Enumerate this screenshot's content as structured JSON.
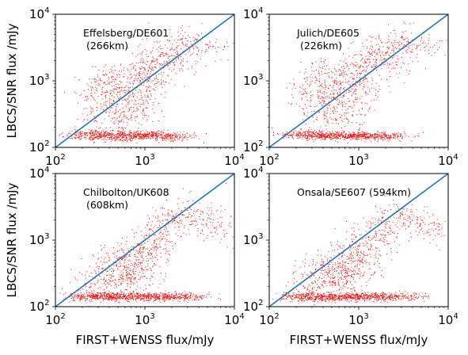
{
  "chart_data": [
    {
      "type": "scatter",
      "annotation": [
        "Effelsberg/DE601",
        " (266km)"
      ],
      "xlabel": "",
      "ylabel": "LBCS/SNR flux /mJy",
      "xscale": "log",
      "yscale": "log",
      "xlim": [
        100,
        10000
      ],
      "ylim": [
        100,
        10000
      ],
      "x_tick_labels": [
        {
          "base": "10",
          "exp": "2"
        },
        {
          "base": "10",
          "exp": "3"
        },
        {
          "base": "10",
          "exp": "4"
        }
      ],
      "y_tick_labels": [
        {
          "base": "10",
          "exp": "2"
        },
        {
          "base": "10",
          "exp": "3"
        },
        {
          "base": "10",
          "exp": "4"
        }
      ],
      "series": [
        {
          "marker_color": "#ff0000",
          "points": [
            [
              200,
              150
            ],
            [
              260,
              170
            ],
            [
              320,
              145
            ],
            [
              410,
              160
            ],
            [
              500,
              140
            ],
            [
              650,
              155
            ],
            [
              800,
              150
            ],
            [
              1000,
              145
            ],
            [
              1300,
              160
            ],
            [
              1700,
              150
            ],
            [
              2200,
              145
            ],
            [
              300,
              300
            ],
            [
              450,
              500
            ],
            [
              600,
              800
            ],
            [
              800,
              1200
            ],
            [
              1000,
              1500
            ],
            [
              1200,
              2000
            ],
            [
              1500,
              2500
            ],
            [
              2000,
              3000
            ],
            [
              700,
              400
            ],
            [
              900,
              700
            ],
            [
              1100,
              1000
            ],
            [
              400,
              900
            ],
            [
              350,
              1200
            ],
            [
              2500,
              1800
            ],
            [
              3000,
              4000
            ],
            [
              5000,
              3500
            ],
            [
              250,
              600
            ],
            [
              550,
              250
            ],
            [
              750,
              350
            ]
          ]
        },
        {
          "name": "",
          "type": "line",
          "line_color": "#1f77b4",
          "points": [
            [
              100,
              100
            ],
            [
              10000,
              10000
            ]
          ]
        }
      ]
    },
    {
      "type": "scatter",
      "annotation": [
        "Julich/DE605",
        " (226km)"
      ],
      "xlabel": "",
      "ylabel": "",
      "xscale": "log",
      "yscale": "log",
      "xlim": [
        100,
        10000
      ],
      "ylim": [
        100,
        10000
      ],
      "x_tick_labels": [
        {
          "base": "10",
          "exp": "2"
        },
        {
          "base": "10",
          "exp": "3"
        },
        {
          "base": "10",
          "exp": "4"
        }
      ],
      "y_tick_labels": [
        {
          "base": "10",
          "exp": "2"
        },
        {
          "base": "10",
          "exp": "3"
        },
        {
          "base": "10",
          "exp": "4"
        }
      ],
      "series": [
        {
          "marker_color": "#ff0000",
          "points": [
            [
              200,
              155
            ],
            [
              270,
              165
            ],
            [
              340,
              145
            ],
            [
              420,
              150
            ],
            [
              520,
              160
            ],
            [
              660,
              145
            ],
            [
              820,
              150
            ],
            [
              1050,
              155
            ],
            [
              1350,
              150
            ],
            [
              1800,
              145
            ],
            [
              2300,
              150
            ],
            [
              320,
              350
            ],
            [
              470,
              550
            ],
            [
              620,
              900
            ],
            [
              820,
              1300
            ],
            [
              1050,
              1700
            ],
            [
              1250,
              2100
            ],
            [
              1600,
              2600
            ],
            [
              2100,
              3200
            ],
            [
              720,
              450
            ],
            [
              920,
              750
            ],
            [
              1150,
              1050
            ],
            [
              420,
              950
            ],
            [
              360,
              1300
            ],
            [
              2600,
              1900
            ],
            [
              3200,
              4200
            ],
            [
              5200,
              3700
            ],
            [
              260,
              650
            ],
            [
              560,
              260
            ],
            [
              760,
              380
            ]
          ]
        },
        {
          "name": "",
          "type": "line",
          "line_color": "#1f77b4",
          "points": [
            [
              100,
              100
            ],
            [
              10000,
              10000
            ]
          ]
        }
      ]
    },
    {
      "type": "scatter",
      "annotation": [
        "Chilbolton/UK608",
        " (608km)"
      ],
      "xlabel": "FIRST+WENSS flux/mJy",
      "ylabel": "LBCS/SNR flux /mJy",
      "xscale": "log",
      "yscale": "log",
      "xlim": [
        100,
        10000
      ],
      "ylim": [
        100,
        10000
      ],
      "x_tick_labels": [
        {
          "base": "10",
          "exp": "2"
        },
        {
          "base": "10",
          "exp": "3"
        },
        {
          "base": "10",
          "exp": "4"
        }
      ],
      "y_tick_labels": [
        {
          "base": "10",
          "exp": "2"
        },
        {
          "base": "10",
          "exp": "3"
        },
        {
          "base": "10",
          "exp": "4"
        }
      ],
      "series": [
        {
          "marker_color": "#ff0000",
          "points": [
            [
              200,
              140
            ],
            [
              260,
              145
            ],
            [
              330,
              140
            ],
            [
              410,
              150
            ],
            [
              510,
              140
            ],
            [
              650,
              145
            ],
            [
              820,
              140
            ],
            [
              1050,
              145
            ],
            [
              1350,
              140
            ],
            [
              1800,
              145
            ],
            [
              2400,
              140
            ],
            [
              3200,
              145
            ],
            [
              300,
              250
            ],
            [
              450,
              350
            ],
            [
              600,
              500
            ],
            [
              800,
              700
            ],
            [
              1000,
              900
            ],
            [
              1300,
              1200
            ],
            [
              1700,
              1600
            ],
            [
              2200,
              2200
            ],
            [
              700,
              300
            ],
            [
              900,
              450
            ],
            [
              1100,
              600
            ],
            [
              400,
              500
            ],
            [
              3000,
              2800
            ],
            [
              4500,
              2000
            ],
            [
              250,
              200
            ],
            [
              550,
              220
            ],
            [
              750,
              260
            ],
            [
              6000,
              1500
            ]
          ]
        },
        {
          "name": "",
          "type": "line",
          "line_color": "#1f77b4",
          "points": [
            [
              100,
              100
            ],
            [
              10000,
              10000
            ]
          ]
        }
      ]
    },
    {
      "type": "scatter",
      "annotation": [
        "Onsala/SE607 (594km)"
      ],
      "xlabel": "FIRST+WENSS flux/mJy",
      "ylabel": "",
      "xscale": "log",
      "yscale": "log",
      "xlim": [
        100,
        10000
      ],
      "ylim": [
        100,
        10000
      ],
      "x_tick_labels": [
        {
          "base": "10",
          "exp": "2"
        },
        {
          "base": "10",
          "exp": "3"
        },
        {
          "base": "10",
          "exp": "4"
        }
      ],
      "y_tick_labels": [
        {
          "base": "10",
          "exp": "2"
        },
        {
          "base": "10",
          "exp": "3"
        },
        {
          "base": "10",
          "exp": "4"
        }
      ],
      "series": [
        {
          "marker_color": "#ff0000",
          "points": [
            [
              200,
              140
            ],
            [
              260,
              145
            ],
            [
              330,
              140
            ],
            [
              410,
              145
            ],
            [
              510,
              140
            ],
            [
              650,
              145
            ],
            [
              820,
              140
            ],
            [
              1050,
              145
            ],
            [
              1350,
              140
            ],
            [
              1800,
              145
            ],
            [
              2400,
              140
            ],
            [
              3200,
              145
            ],
            [
              300,
              230
            ],
            [
              450,
              320
            ],
            [
              600,
              450
            ],
            [
              800,
              620
            ],
            [
              1000,
              800
            ],
            [
              1300,
              1100
            ],
            [
              1700,
              1400
            ],
            [
              2200,
              1900
            ],
            [
              700,
              280
            ],
            [
              900,
              400
            ],
            [
              1100,
              520
            ],
            [
              400,
              420
            ],
            [
              3000,
              2500
            ],
            [
              4500,
              1800
            ],
            [
              250,
              190
            ],
            [
              550,
              210
            ],
            [
              750,
              240
            ],
            [
              6000,
              1300
            ]
          ]
        },
        {
          "name": "",
          "type": "line",
          "line_color": "#1f77b4",
          "points": [
            [
              100,
              100
            ],
            [
              10000,
              10000
            ]
          ]
        }
      ]
    }
  ]
}
